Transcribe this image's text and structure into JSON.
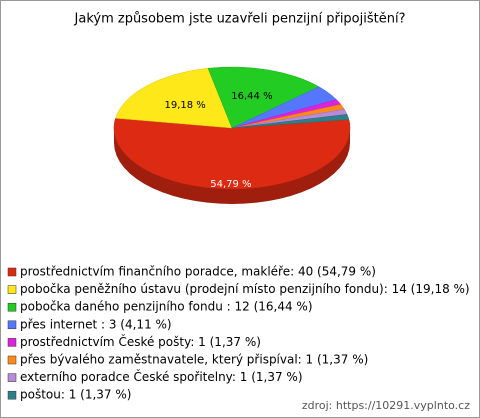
{
  "chart_data": {
    "type": "pie",
    "title": "Jakým způsobem jste uzavřeli penzijní připojištění?",
    "categories": [
      "prostřednictvím finančního poradce, makléře: 40 (54,79 %)",
      "pobočka peněžního ústavu (prodejní místo penzijního fondu): 14 (19,18 %)",
      "pobočka daného penzijního fondu : 12 (16,44 %)",
      "přes internet : 3 (4,11 %)",
      "prostřednictvím České pošty: 1 (1,37 %)",
      "přes bývalého zaměstnavatele, který přispíval: 1 (1,37 %)",
      "externího poradce České spořitelny: 1 (1,37 %)",
      "poštou: 1 (1,37 %)"
    ],
    "values": [
      54.79,
      19.18,
      16.44,
      4.11,
      1.37,
      1.37,
      1.37,
      1.37
    ],
    "value_labels": [
      "54,79 %",
      "19,18 %",
      "16,44 %",
      null,
      null,
      null,
      null,
      null
    ],
    "colors": [
      "#dd2a12",
      "#ffe81a",
      "#22cc22",
      "#5577ff",
      "#dd22dd",
      "#ff8a1a",
      "#b98ad8",
      "#2f7f8a"
    ],
    "source": "zdroj: https://10291.vyplnto.cz"
  }
}
